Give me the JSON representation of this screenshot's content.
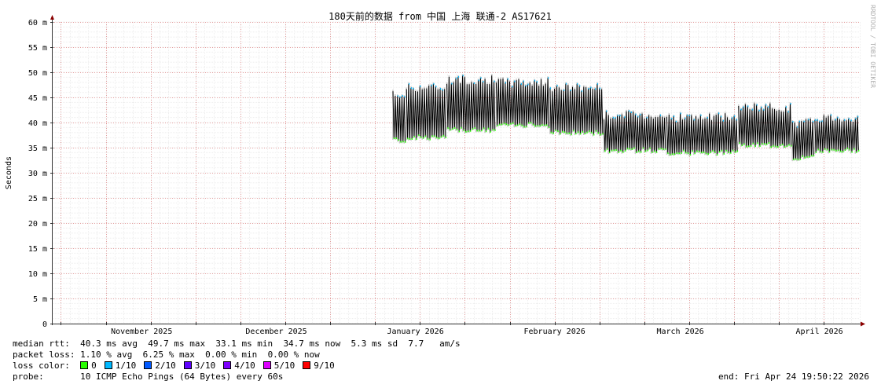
{
  "chart_data": {
    "type": "line",
    "title": "180天前的数据 from 中国 上海 联通-2 AS17621",
    "ylabel": "Seconds",
    "ylim": [
      0,
      0.06
    ],
    "y_ticks": [
      {
        "value": 0,
        "label": "0"
      },
      {
        "value": 0.005,
        "label": "5 m"
      },
      {
        "value": 0.01,
        "label": "10 m"
      },
      {
        "value": 0.015,
        "label": "15 m"
      },
      {
        "value": 0.02,
        "label": "20 m"
      },
      {
        "value": 0.025,
        "label": "25 m"
      },
      {
        "value": 0.03,
        "label": "30 m"
      },
      {
        "value": 0.035,
        "label": "35 m"
      },
      {
        "value": 0.04,
        "label": "40 m"
      },
      {
        "value": 0.045,
        "label": "45 m"
      },
      {
        "value": 0.05,
        "label": "50 m"
      },
      {
        "value": 0.055,
        "label": "55 m"
      },
      {
        "value": 0.06,
        "label": "60 m"
      }
    ],
    "x_range": [
      "2025-10-26",
      "2026-04-24"
    ],
    "x_ticks": [
      {
        "date": "2025-11-15",
        "label": "November 2025"
      },
      {
        "date": "2025-12-15",
        "label": "December 2025"
      },
      {
        "date": "2026-01-15",
        "label": "January 2026"
      },
      {
        "date": "2026-02-15",
        "label": "February 2026"
      },
      {
        "date": "2026-03-15",
        "label": "March 2026"
      },
      {
        "date": "2026-04-15",
        "label": "April 2026"
      }
    ],
    "grid": true,
    "data_start": "2026-01-10",
    "segments": [
      {
        "start": "2026-01-10",
        "end": "2026-01-13",
        "min_ms": 36.5,
        "max_ms": 45.5
      },
      {
        "start": "2026-01-13",
        "end": "2026-01-22",
        "min_ms": 37.0,
        "max_ms": 47.0
      },
      {
        "start": "2026-01-22",
        "end": "2026-02-02",
        "min_ms": 38.5,
        "max_ms": 48.5
      },
      {
        "start": "2026-02-02",
        "end": "2026-02-14",
        "min_ms": 39.5,
        "max_ms": 48.0
      },
      {
        "start": "2026-02-14",
        "end": "2026-02-26",
        "min_ms": 38.0,
        "max_ms": 47.0
      },
      {
        "start": "2026-02-26",
        "end": "2026-03-12",
        "min_ms": 34.5,
        "max_ms": 41.5
      },
      {
        "start": "2026-03-12",
        "end": "2026-03-28",
        "min_ms": 34.0,
        "max_ms": 41.0
      },
      {
        "start": "2026-03-28",
        "end": "2026-04-09",
        "min_ms": 35.5,
        "max_ms": 43.0
      },
      {
        "start": "2026-04-09",
        "end": "2026-04-14",
        "min_ms": 33.0,
        "max_ms": 40.0
      },
      {
        "start": "2026-04-14",
        "end": "2026-04-24",
        "min_ms": 34.5,
        "max_ms": 41.0
      }
    ],
    "series": [
      {
        "name": "median rtt",
        "color": "#000000"
      },
      {
        "name": "loss 0",
        "color": "#26ff00"
      }
    ],
    "line_colors": {
      "rtt": "#000000",
      "smoke": "#9a9a9a",
      "loss0": "#26ff00",
      "loss1": "#00b8ff"
    }
  },
  "watermark": "RRDTOOL / TOBI OETIKER",
  "stats": {
    "median_rtt": {
      "label": "median rtt:",
      "avg": "40.3 ms avg",
      "max": "49.7 ms max",
      "min": "33.1 ms min",
      "now": "34.7 ms now",
      "sd": "5.3 ms sd",
      "am": "7.7",
      "am_unit": "am/s"
    },
    "packet_loss": {
      "label": "packet loss:",
      "avg": "1.10 % avg",
      "max": "6.25 % max",
      "min": "0.00 % min",
      "now": "0.00 % now"
    },
    "loss_color": {
      "label": "loss color:",
      "items": [
        {
          "label": "0",
          "color": "#26ff00"
        },
        {
          "label": "1/10",
          "color": "#00b8ff"
        },
        {
          "label": "2/10",
          "color": "#0059ff"
        },
        {
          "label": "3/10",
          "color": "#5e00ff"
        },
        {
          "label": "4/10",
          "color": "#7e00ff"
        },
        {
          "label": "5/10",
          "color": "#dd00ff"
        },
        {
          "label": "9/10",
          "color": "#ff0000"
        }
      ]
    },
    "probe": {
      "label": "probe:",
      "text": "10 ICMP Echo Pings (64 Bytes) every 60s",
      "end": "end: Fri Apr 24 19:50:22 2026"
    }
  }
}
